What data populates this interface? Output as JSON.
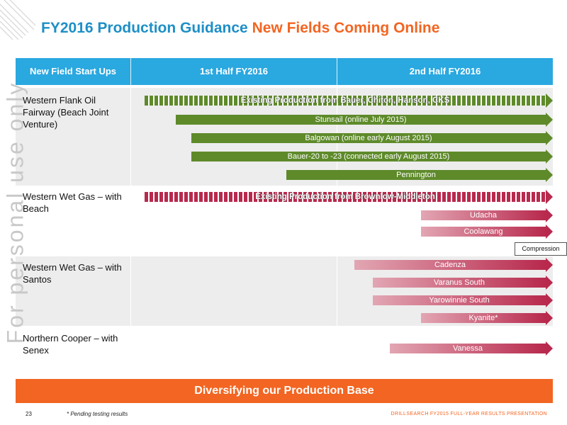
{
  "title": {
    "part1": "FY2016 Production Guidance",
    "part2": "New Fields Coming Online"
  },
  "watermark": "For personal use only",
  "table": {
    "headers": [
      "New Field Start Ups",
      "1st Half FY2016",
      "2nd Half FY2016"
    ]
  },
  "rows": [
    {
      "label": "Western Flank Oil Fairway (Beach Joint Venture)"
    },
    {
      "label": "Western Wet Gas – with Beach"
    },
    {
      "label": "Western Wet Gas – with Santos"
    },
    {
      "label": "Northern Cooper – with Senex"
    }
  ],
  "arrows": [
    {
      "label": "Existing Production from Bauer, Chiton, Hanson, CKS",
      "colour": "green",
      "style": "dashed"
    },
    {
      "label": "Stunsail (online July 2015)",
      "colour": "green",
      "style": "solid"
    },
    {
      "label": "Balgowan (online early August 2015)",
      "colour": "green",
      "style": "solid"
    },
    {
      "label": "Bauer-20 to -23 (connected early August 2015)",
      "colour": "green",
      "style": "solid"
    },
    {
      "label": "Pennington",
      "colour": "green",
      "style": "solid"
    },
    {
      "label": "Existing Production from Brownlow-Middleton",
      "colour": "crimson",
      "style": "dashed"
    },
    {
      "label": "Udacha",
      "colour": "crimson",
      "style": "solid"
    },
    {
      "label": "Coolawang",
      "colour": "crimson",
      "style": "solid"
    },
    {
      "label": "Cadenza",
      "colour": "crimson",
      "style": "solid"
    },
    {
      "label": "Varanus South",
      "colour": "crimson",
      "style": "solid"
    },
    {
      "label": "Yarowinnie South",
      "colour": "crimson",
      "style": "solid"
    },
    {
      "label": "Kyanite*",
      "colour": "crimson",
      "style": "solid"
    },
    {
      "label": "Vanessa",
      "colour": "crimson",
      "style": "solid"
    }
  ],
  "compression_label": "Compression",
  "banner": "Diversifying our Production Base",
  "footer": {
    "page_number": "23",
    "footnote": "* Pending testing results",
    "brand": "DRILLSEARCH",
    "presentation": "FY2015 FULL-YEAR RESULTS PRESENTATION"
  },
  "colors": {
    "title_blue": "#1e8fc6",
    "title_orange": "#f26522",
    "header_blue": "#2aa8e0",
    "green": "#5e8a2a",
    "crimson": "#b8294d",
    "banner_orange": "#f26522",
    "band_grey": "#ededed"
  }
}
